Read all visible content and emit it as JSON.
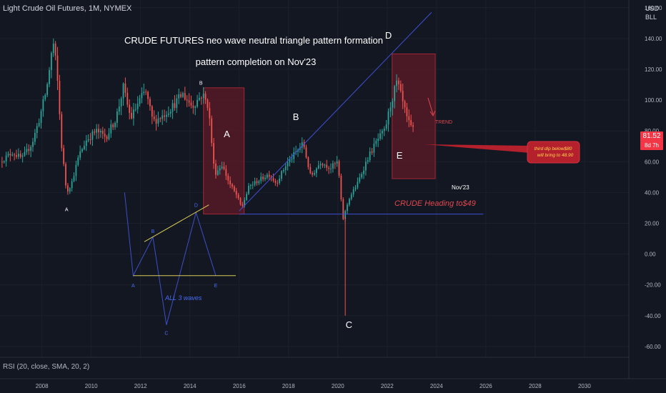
{
  "header": {
    "symbol": "Light Crude Oil Futures, 1M, NYMEX",
    "currency": "USD",
    "unit": "BLL"
  },
  "price_tag": {
    "price": "81.52",
    "countdown": "8d 7h"
  },
  "indicator": {
    "label": "RSI (20, close, SMA, 20, 2)"
  },
  "colors": {
    "background": "#131722",
    "bull": "#26a69a",
    "bear": "#ef5350",
    "box": "#5a1a26",
    "line": "#3f4fd4",
    "accent": "#f23645"
  },
  "chart_data": {
    "type": "candlestick",
    "title": "CRUDE FUTURES  neo wave neutral triangle pattern formation",
    "subtitle": "pattern completion on Nov'23",
    "x_ticks": [
      "2008",
      "2010",
      "2012",
      "2014",
      "2016",
      "2018",
      "2020",
      "2022",
      "2024",
      "2026",
      "2028",
      "2030"
    ],
    "xlim": [
      2006.3,
      2031.8
    ],
    "y_ticks": [
      "-60.00",
      "-40.00",
      "-20.00",
      "0.00",
      "20.00",
      "40.00",
      "60.00",
      "80.00",
      "100.00",
      "120.00",
      "140.00",
      "160.00"
    ],
    "ylim": [
      -67,
      165
    ],
    "anchors": [
      [
        2006.3,
        60
      ],
      [
        2006.8,
        66
      ],
      [
        2007.2,
        62
      ],
      [
        2007.6,
        72
      ],
      [
        2007.9,
        88
      ],
      [
        2008.2,
        108
      ],
      [
        2008.45,
        138
      ],
      [
        2008.6,
        120
      ],
      [
        2008.8,
        70
      ],
      [
        2009.0,
        40
      ],
      [
        2009.2,
        46
      ],
      [
        2009.5,
        64
      ],
      [
        2009.8,
        74
      ],
      [
        2010.2,
        80
      ],
      [
        2010.6,
        76
      ],
      [
        2011.0,
        88
      ],
      [
        2011.3,
        108
      ],
      [
        2011.6,
        88
      ],
      [
        2011.9,
        98
      ],
      [
        2012.2,
        106
      ],
      [
        2012.5,
        86
      ],
      [
        2012.9,
        90
      ],
      [
        2013.3,
        96
      ],
      [
        2013.7,
        104
      ],
      [
        2014.1,
        96
      ],
      [
        2014.5,
        104
      ],
      [
        2014.75,
        96
      ],
      [
        2015.0,
        52
      ],
      [
        2015.3,
        58
      ],
      [
        2015.6,
        46
      ],
      [
        2015.9,
        38
      ],
      [
        2016.1,
        30
      ],
      [
        2016.4,
        44
      ],
      [
        2016.8,
        48
      ],
      [
        2017.2,
        52
      ],
      [
        2017.5,
        46
      ],
      [
        2017.9,
        58
      ],
      [
        2018.3,
        66
      ],
      [
        2018.6,
        72
      ],
      [
        2018.9,
        50
      ],
      [
        2019.3,
        60
      ],
      [
        2019.7,
        56
      ],
      [
        2020.0,
        60
      ],
      [
        2020.2,
        22
      ],
      [
        2020.45,
        36
      ],
      [
        2020.8,
        46
      ],
      [
        2021.2,
        62
      ],
      [
        2021.6,
        74
      ],
      [
        2021.9,
        80
      ],
      [
        2022.15,
        98
      ],
      [
        2022.4,
        112
      ],
      [
        2022.6,
        100
      ],
      [
        2022.8,
        88
      ],
      [
        2022.95,
        82
      ],
      [
        2023.05,
        81.5
      ]
    ],
    "annotations": {
      "wave_labels": [
        {
          "text": "A",
          "x": 2009.0,
          "y": 28,
          "size": "small"
        },
        {
          "text": "B",
          "x": 2014.45,
          "y": 110,
          "size": "small"
        },
        {
          "text": "A",
          "x": 2015.5,
          "y": 76,
          "size": "large"
        },
        {
          "text": "B",
          "x": 2018.3,
          "y": 87,
          "size": "large"
        },
        {
          "text": "C",
          "x": 2020.45,
          "y": -48,
          "size": "large"
        },
        {
          "text": "D",
          "x": 2022.05,
          "y": 140,
          "size": "large"
        },
        {
          "text": "E",
          "x": 2022.5,
          "y": 62,
          "size": "large"
        }
      ],
      "boxes": [
        {
          "x0": 2014.55,
          "x1": 2016.2,
          "y0": 26,
          "y1": 108
        },
        {
          "x0": 2022.2,
          "x1": 2023.95,
          "y0": 49,
          "y1": 130
        }
      ],
      "lines": [
        {
          "from": [
            2016.0,
            28
          ],
          "to": [
            2023.8,
            157
          ]
        },
        {
          "from": [
            2016.0,
            26
          ],
          "to": [
            2025.9,
            26
          ]
        }
      ],
      "trend_label": "TREND",
      "nov_label": "Nov'23",
      "heading_text": "CRUDE Heading to$49",
      "callout_line1": "third dip below$80",
      "callout_line2": "will bring to 48.90",
      "schematic": {
        "points": [
          {
            "label": "A",
            "x": 2011.7,
            "y": -14
          },
          {
            "label": "B",
            "x": 2012.5,
            "y": 11
          },
          {
            "label": "C",
            "x": 2013.05,
            "y": -46
          },
          {
            "label": "D",
            "x": 2014.25,
            "y": 27
          },
          {
            "label": "E",
            "x": 2015.05,
            "y": -14
          }
        ],
        "caption": "ALL 3 waves"
      }
    }
  }
}
